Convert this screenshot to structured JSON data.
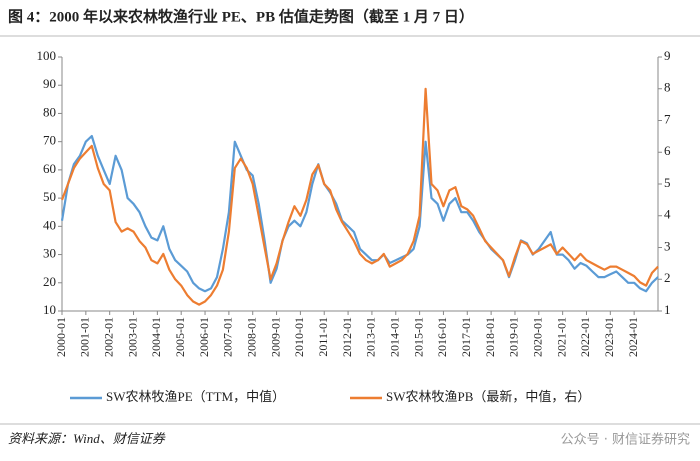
{
  "chart_data": {
    "type": "line",
    "title": "图 4：2000 年以来农林牧渔行业 PE、PB 估值走势图（截至 1 月 7 日）",
    "source": "资料来源：Wind、财信证券",
    "watermark": "公众号 · 财信证券研究",
    "categories": [
      "2000-01",
      "2000-04",
      "2000-07",
      "2000-10",
      "2001-01",
      "2001-04",
      "2001-07",
      "2001-10",
      "2002-01",
      "2002-04",
      "2002-07",
      "2002-10",
      "2003-01",
      "2003-04",
      "2003-07",
      "2003-10",
      "2004-01",
      "2004-04",
      "2004-07",
      "2004-10",
      "2005-01",
      "2005-04",
      "2005-07",
      "2005-10",
      "2006-01",
      "2006-04",
      "2006-07",
      "2006-10",
      "2007-01",
      "2007-04",
      "2007-07",
      "2007-10",
      "2008-01",
      "2008-04",
      "2008-07",
      "2008-10",
      "2009-01",
      "2009-04",
      "2009-07",
      "2009-10",
      "2010-01",
      "2010-04",
      "2010-07",
      "2010-10",
      "2011-01",
      "2011-04",
      "2011-07",
      "2011-10",
      "2012-01",
      "2012-04",
      "2012-07",
      "2012-10",
      "2013-01",
      "2013-04",
      "2013-07",
      "2013-10",
      "2014-01",
      "2014-04",
      "2014-07",
      "2014-10",
      "2015-01",
      "2015-04",
      "2015-07",
      "2015-10",
      "2016-01",
      "2016-04",
      "2016-07",
      "2016-10",
      "2017-01",
      "2017-04",
      "2017-07",
      "2017-10",
      "2018-01",
      "2018-04",
      "2018-07",
      "2018-10",
      "2019-01",
      "2019-04",
      "2019-07",
      "2019-10",
      "2020-01",
      "2020-04",
      "2020-07",
      "2020-10",
      "2021-01",
      "2021-04",
      "2021-07",
      "2021-10",
      "2022-01",
      "2022-04",
      "2022-07",
      "2022-10",
      "2023-01",
      "2023-04",
      "2023-07",
      "2023-10",
      "2024-01",
      "2024-04",
      "2024-07",
      "2024-10",
      "2025-01"
    ],
    "xticks": [
      "2000-01",
      "2001-01",
      "2002-01",
      "2003-01",
      "2004-01",
      "2005-01",
      "2006-01",
      "2007-01",
      "2008-01",
      "2009-01",
      "2010-01",
      "2011-01",
      "2012-01",
      "2013-01",
      "2014-01",
      "2015-01",
      "2016-01",
      "2017-01",
      "2018-01",
      "2019-01",
      "2020-01",
      "2021-01",
      "2022-01",
      "2023-01",
      "2024-01"
    ],
    "ylim": [
      10,
      100
    ],
    "yticks": [
      10,
      20,
      30,
      40,
      50,
      60,
      70,
      80,
      90,
      100
    ],
    "y2lim": [
      1,
      9
    ],
    "y2ticks": [
      1,
      2,
      3,
      4,
      5,
      6,
      7,
      8,
      9
    ],
    "legend": "bottom",
    "series": [
      {
        "name": "SW农林牧渔PE（TTM，中值）",
        "color": "#5b9bd5",
        "values": [
          42,
          55,
          62,
          65,
          70,
          72,
          65,
          60,
          55,
          65,
          60,
          50,
          48,
          45,
          40,
          36,
          35,
          40,
          32,
          28,
          26,
          24,
          20,
          18,
          17,
          18,
          22,
          32,
          45,
          70,
          65,
          60,
          58,
          48,
          35,
          20,
          25,
          35,
          40,
          42,
          40,
          45,
          55,
          62,
          55,
          52,
          48,
          42,
          40,
          38,
          32,
          30,
          28,
          28,
          30,
          27,
          28,
          29,
          30,
          32,
          40,
          70,
          50,
          48,
          42,
          48,
          50,
          45,
          45,
          42,
          38,
          35,
          32,
          30,
          28,
          22,
          28,
          35,
          34,
          30,
          32,
          35,
          38,
          30,
          30,
          28,
          25,
          27,
          26,
          24,
          22,
          22,
          23,
          24,
          22,
          20,
          20,
          18,
          17,
          20,
          22
        ]
      },
      {
        "name": "SW农林牧渔PB（最新，中值，右）",
        "color": "#ed7d31",
        "axis": "y2",
        "values": [
          4.5,
          5,
          5.5,
          5.8,
          6.0,
          6.2,
          5.5,
          5.0,
          4.8,
          3.8,
          3.5,
          3.6,
          3.5,
          3.2,
          3.0,
          2.6,
          2.5,
          2.8,
          2.3,
          2.0,
          1.8,
          1.5,
          1.3,
          1.2,
          1.3,
          1.5,
          1.8,
          2.3,
          3.5,
          5.5,
          5.8,
          5.5,
          5.0,
          4.0,
          3.0,
          2.0,
          2.5,
          3.2,
          3.8,
          4.3,
          4.0,
          4.5,
          5.3,
          5.6,
          5.0,
          4.8,
          4.2,
          3.8,
          3.5,
          3.2,
          2.8,
          2.6,
          2.5,
          2.6,
          2.8,
          2.4,
          2.5,
          2.6,
          2.8,
          3.2,
          4.0,
          8.0,
          5.0,
          4.8,
          4.3,
          4.8,
          4.9,
          4.3,
          4.2,
          4.0,
          3.6,
          3.2,
          3.0,
          2.8,
          2.6,
          2.1,
          2.7,
          3.2,
          3.1,
          2.8,
          2.9,
          3.0,
          3.1,
          2.8,
          3.0,
          2.8,
          2.6,
          2.8,
          2.6,
          2.5,
          2.4,
          2.3,
          2.4,
          2.4,
          2.3,
          2.2,
          2.1,
          1.9,
          1.8,
          2.2,
          2.4
        ]
      }
    ]
  }
}
